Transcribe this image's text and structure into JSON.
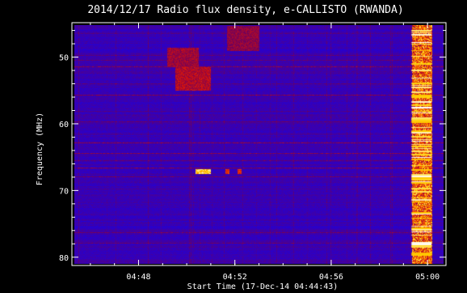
{
  "chart_data": {
    "type": "heatmap",
    "title": "2014/12/17  Radio flux density, e-CALLISTO (RWANDA)",
    "xlabel": "Start Time (17-Dec-14 04:44:43)",
    "ylabel": "Frequency (MHz)",
    "x_unit": "time (UT)",
    "xlim": [
      "04:45:20",
      "05:00:40"
    ],
    "ylim": [
      45.2,
      81.0
    ],
    "y_inverted": true,
    "x_ticks": [
      "04:48",
      "04:52",
      "04:56",
      "05:00"
    ],
    "y_ticks": [
      50,
      60,
      70,
      80
    ],
    "colormap": [
      "#0a00ff",
      "#6a0060",
      "#d01010",
      "#ff7000",
      "#ffd000",
      "#ffffff"
    ],
    "background_value": 0.05,
    "features": [
      {
        "kind": "patch",
        "t_start": "04:49:10",
        "t_end": "04:50:30",
        "f_low": 48.5,
        "f_high": 51.5,
        "intensity": 0.35
      },
      {
        "kind": "patch",
        "t_start": "04:49:30",
        "t_end": "04:51:00",
        "f_low": 51.5,
        "f_high": 55.0,
        "intensity": 0.4
      },
      {
        "kind": "patch",
        "t_start": "04:51:40",
        "t_end": "04:53:00",
        "f_low": 45.3,
        "f_high": 49.0,
        "intensity": 0.32
      },
      {
        "kind": "burst",
        "t_start": "04:50:20",
        "t_end": "04:51:00",
        "f_low": 66.8,
        "f_high": 67.5,
        "intensity": 0.95
      },
      {
        "kind": "burst",
        "t_start": "04:51:35",
        "t_end": "04:51:45",
        "f_low": 66.8,
        "f_high": 67.5,
        "intensity": 0.55
      },
      {
        "kind": "burst",
        "t_start": "04:52:05",
        "t_end": "04:52:15",
        "f_low": 66.8,
        "f_high": 67.5,
        "intensity": 0.55
      },
      {
        "kind": "column",
        "t_start": "04:59:20",
        "t_end": "05:00:10",
        "f_low": 45.2,
        "f_high": 81.0,
        "intensity": 0.85
      }
    ]
  }
}
